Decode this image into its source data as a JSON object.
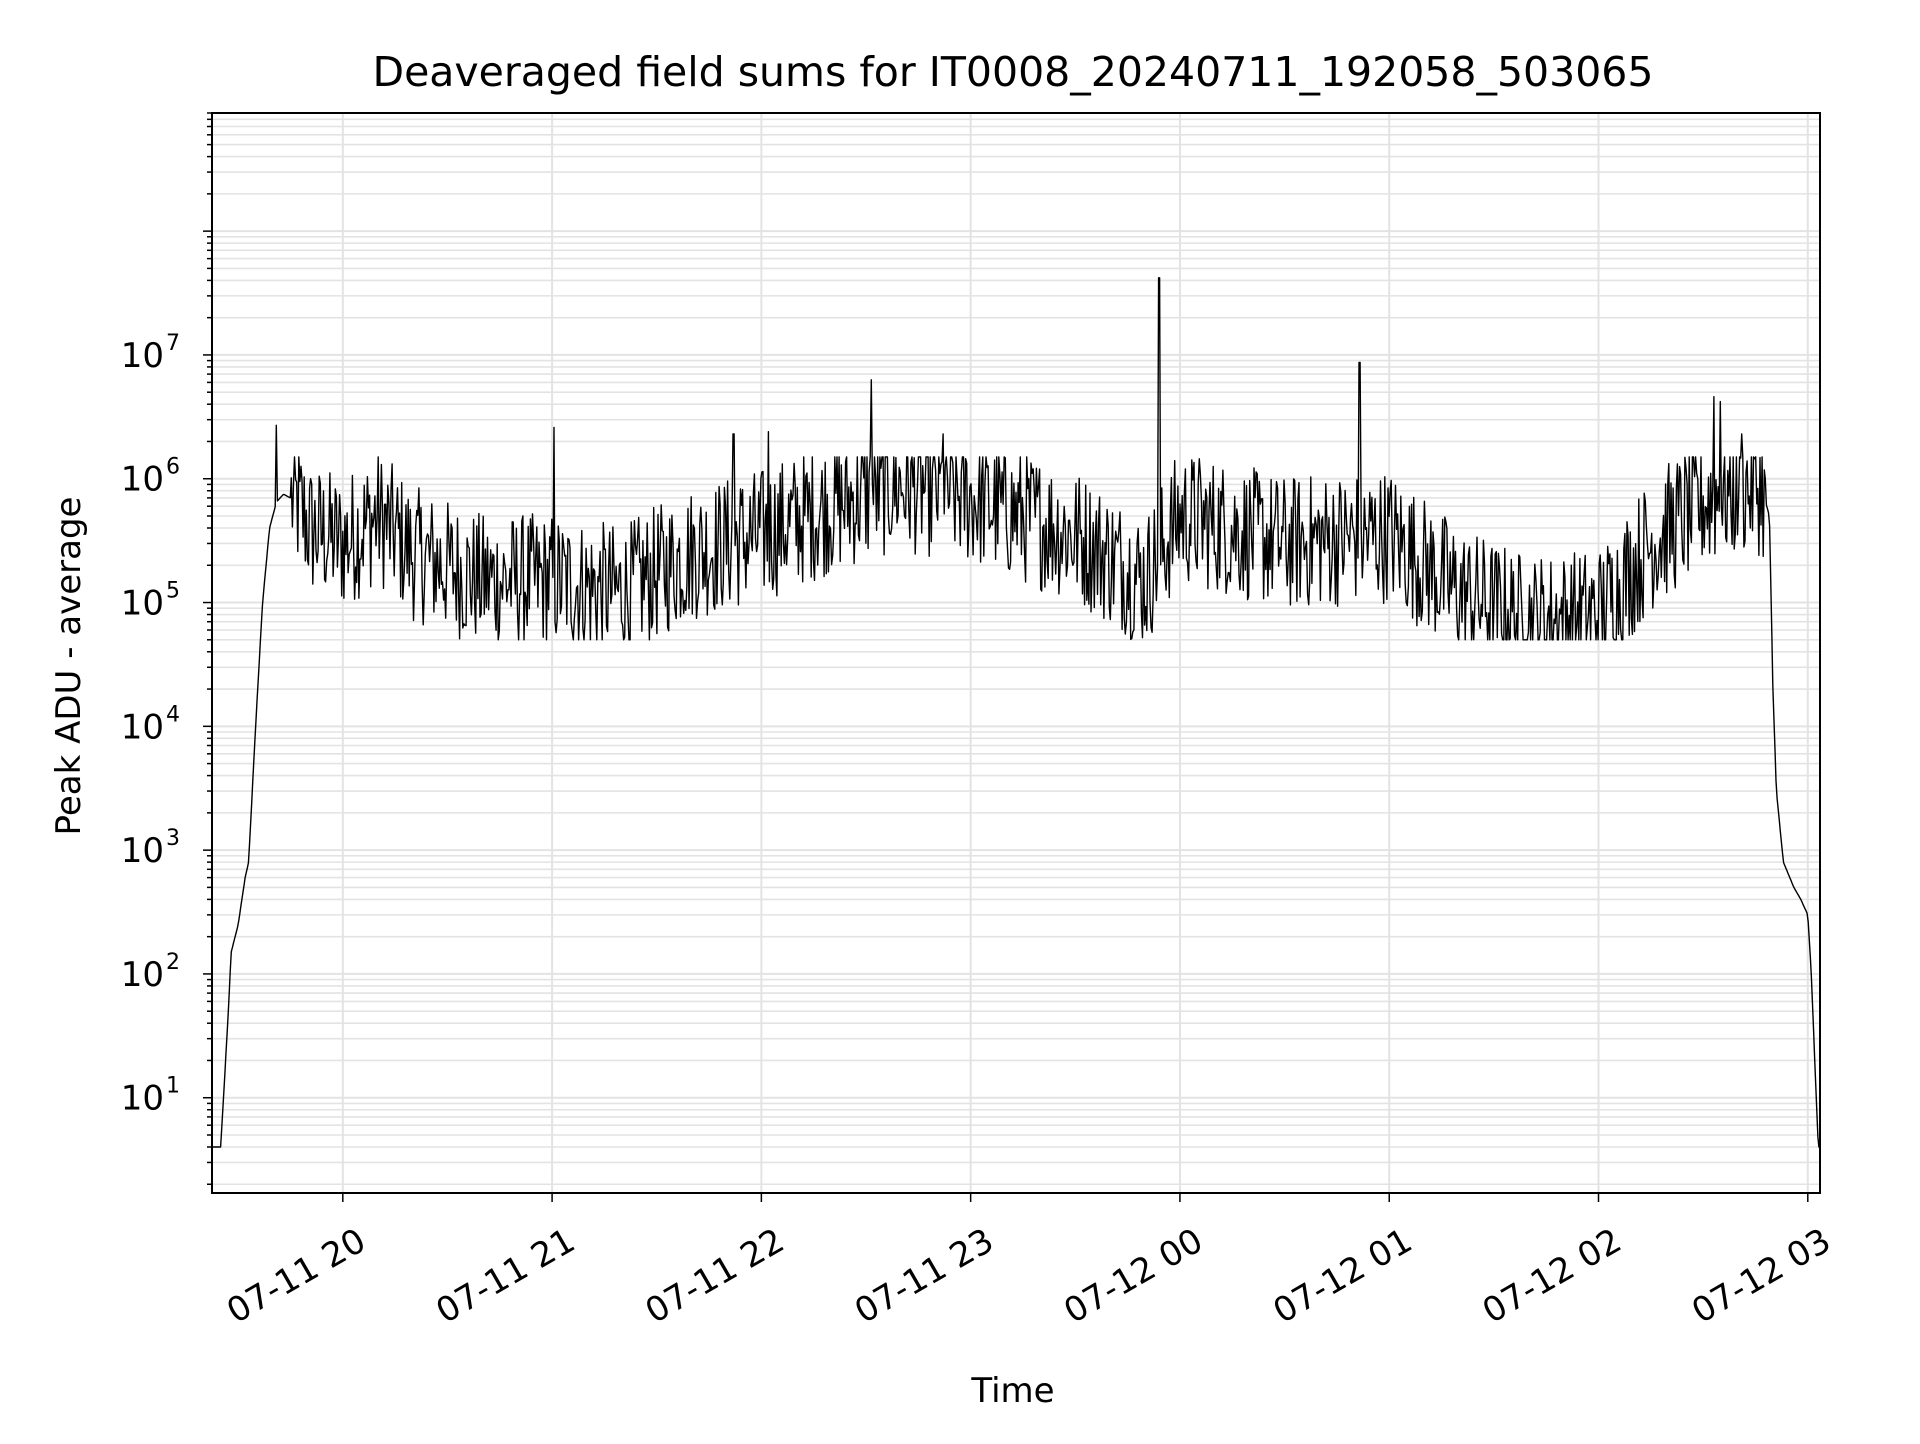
{
  "chart_data": {
    "type": "line",
    "title": "Deaveraged field sums for IT0008_20240711_192058_503065",
    "xlabel": "Time",
    "ylabel": "Peak ADU - average",
    "y_scale": "log",
    "ylim": [
      1.7,
      900000000
    ],
    "xlim": [
      "2024-07-11 19:22:30",
      "2024-07-12 03:03:30"
    ],
    "x_tick_labels": [
      "07-11 20",
      "07-11 21",
      "07-11 22",
      "07-11 23",
      "07-12 00",
      "07-12 01",
      "07-12 02",
      "07-12 03"
    ],
    "x_tick_times": [
      "2024-07-11 20:00",
      "2024-07-11 21:00",
      "2024-07-11 22:00",
      "2024-07-11 23:00",
      "2024-07-12 00:00",
      "2024-07-12 01:00",
      "2024-07-12 02:00",
      "2024-07-12 03:00"
    ],
    "y_ticks": [
      {
        "value": 10,
        "base": "10",
        "exp": "1"
      },
      {
        "value": 100,
        "base": "10",
        "exp": "2"
      },
      {
        "value": 1000,
        "base": "10",
        "exp": "3"
      },
      {
        "value": 10000,
        "base": "10",
        "exp": "4"
      },
      {
        "value": 100000,
        "base": "10",
        "exp": "5"
      },
      {
        "value": 1000000,
        "base": "10",
        "exp": "6"
      },
      {
        "value": 10000000,
        "base": "10",
        "exp": "7"
      }
    ],
    "grid": true,
    "line_color": "#000000",
    "grid_color": "#e3e3e3",
    "series": [
      {
        "x": [
          "2024-07-11 19:22:30",
          "2024-07-11 19:24:00",
          "2024-07-11 19:25:00",
          "2024-07-11 19:27:00",
          "2024-07-11 19:28:00",
          "2024-07-11 19:30:00",
          "2024-07-11 19:32:00",
          "2024-07-11 19:33:00",
          "2024-07-11 19:35:00",
          "2024-07-11 19:37:00",
          "2024-07-11 19:39:00",
          "2024-07-11 19:41:00",
          "2024-07-11 19:43:00",
          "2024-07-11 19:45:00",
          "2024-07-11 19:48:00",
          "2024-07-11 19:51:00",
          "2024-07-11 19:55:00",
          "2024-07-11 20:00:00",
          "2024-07-11 20:10:00",
          "2024-07-11 20:20:00",
          "2024-07-11 20:40:00",
          "2024-07-11 21:00:00",
          "2024-07-11 21:20:00",
          "2024-07-11 21:40:00",
          "2024-07-11 22:00:00",
          "2024-07-11 22:20:00",
          "2024-07-11 22:40:00",
          "2024-07-11 23:00:00",
          "2024-07-11 23:30:00",
          "2024-07-11 23:50:00",
          "2024-07-12 00:00:00",
          "2024-07-12 00:30:00",
          "2024-07-12 01:00:00",
          "2024-07-12 01:20:00",
          "2024-07-12 01:40:00",
          "2024-07-12 02:00:00",
          "2024-07-12 02:15:00",
          "2024-07-12 02:30:00",
          "2024-07-12 02:40:00",
          "2024-07-12 02:45:00",
          "2024-07-12 02:47:00",
          "2024-07-12 02:49:00",
          "2024-07-12 02:50:00",
          "2024-07-12 02:51:00",
          "2024-07-12 02:53:00",
          "2024-07-12 02:56:00",
          "2024-07-12 02:58:00",
          "2024-07-12 03:00:00",
          "2024-07-12 03:01:00",
          "2024-07-12 03:02:00",
          "2024-07-12 03:03:00"
        ],
        "y": [
          4,
          4,
          4,
          40,
          150,
          250,
          600,
          800,
          10000,
          100000,
          400000,
          650000,
          750000,
          700000,
          550000,
          380000,
          350000,
          300000,
          500000,
          250000,
          150000,
          150000,
          120000,
          250000,
          350000,
          600000,
          900000,
          700000,
          350000,
          150000,
          500000,
          300000,
          350000,
          120000,
          70000,
          80000,
          300000,
          650000,
          800000,
          900000,
          800000,
          500000,
          20000,
          3000,
          800,
          500,
          400,
          300,
          100,
          20,
          4
        ]
      }
    ],
    "spikes": [
      {
        "x": "2024-07-11 19:41:00",
        "y": 2700000
      },
      {
        "x": "2024-07-11 21:00:30",
        "y": 2600000
      },
      {
        "x": "2024-07-11 21:52:00",
        "y": 2300000
      },
      {
        "x": "2024-07-11 22:02:00",
        "y": 2400000
      },
      {
        "x": "2024-07-11 22:31:30",
        "y": 6300000
      },
      {
        "x": "2024-07-11 22:52:00",
        "y": 2300000
      },
      {
        "x": "2024-07-11 23:54:00",
        "y": 42000000
      },
      {
        "x": "2024-07-12 00:51:30",
        "y": 8700000
      },
      {
        "x": "2024-07-12 02:33:00",
        "y": 4600000
      },
      {
        "x": "2024-07-12 02:35:00",
        "y": 4200000
      },
      {
        "x": "2024-07-12 02:41:00",
        "y": 2300000
      }
    ]
  }
}
